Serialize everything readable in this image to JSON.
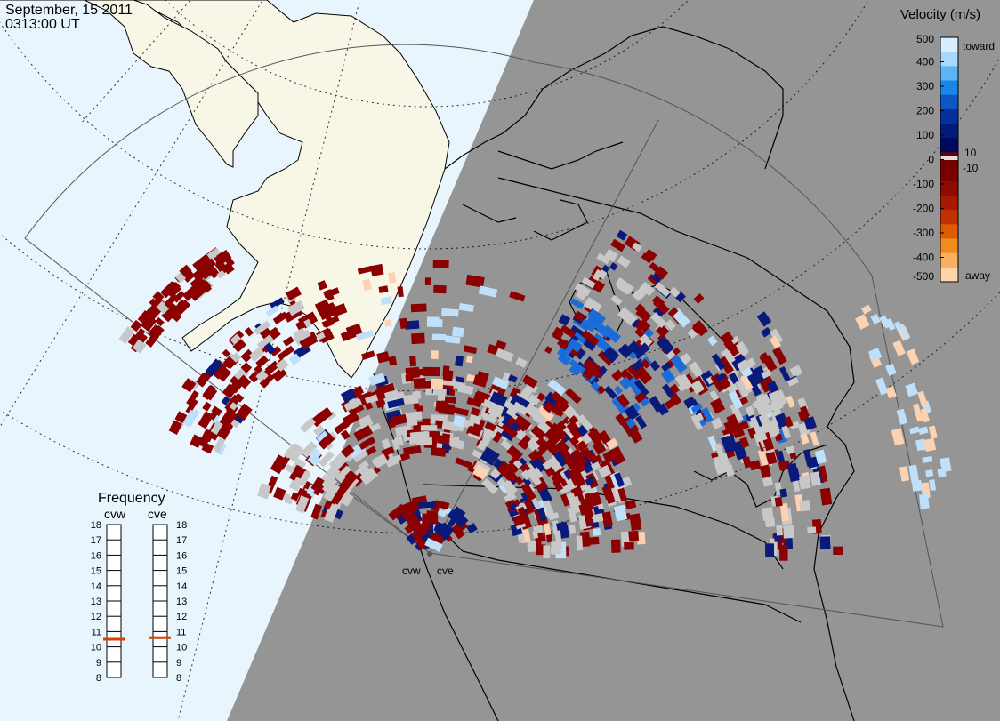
{
  "header": {
    "date": "September, 15 2011",
    "time": "0313:00 UT"
  },
  "radars": [
    {
      "code": "cvw",
      "frequency_mhz": 10.5
    },
    {
      "code": "cve",
      "frequency_mhz": 10.6
    }
  ],
  "velocity_scale": {
    "title": "Velocity (m/s)",
    "ticks": [
      "500",
      "400",
      "300",
      "200",
      "100",
      "0",
      "-100",
      "-200",
      "-300",
      "-400",
      "-500"
    ],
    "small_ticks": [
      "10",
      "-10"
    ],
    "toward_label": "toward",
    "away_label": "away",
    "colors_top_to_bottom": [
      "#d8eefe",
      "#a8d8fb",
      "#5ab4f5",
      "#1a86e8",
      "#0b57c4",
      "#08309a",
      "#001c78",
      "#000a5a",
      "#6d0000",
      "#7a0000",
      "#8f0a00",
      "#a51a00",
      "#c03000",
      "#e05a00",
      "#f08c1a",
      "#f6b060",
      "#fbd4a8"
    ],
    "ground_scatter_color": "#c8c8c8"
  },
  "frequency_panel": {
    "title": "Frequency",
    "labels": [
      "18",
      "17",
      "16",
      "15",
      "14",
      "13",
      "12",
      "11",
      "10",
      "9",
      "8"
    ],
    "min": 8,
    "max": 18
  },
  "map_colors": {
    "day_ocean": "#e9f5fd",
    "day_land": "#f8f6e6",
    "night": "#959595",
    "coast": "#000000"
  }
}
